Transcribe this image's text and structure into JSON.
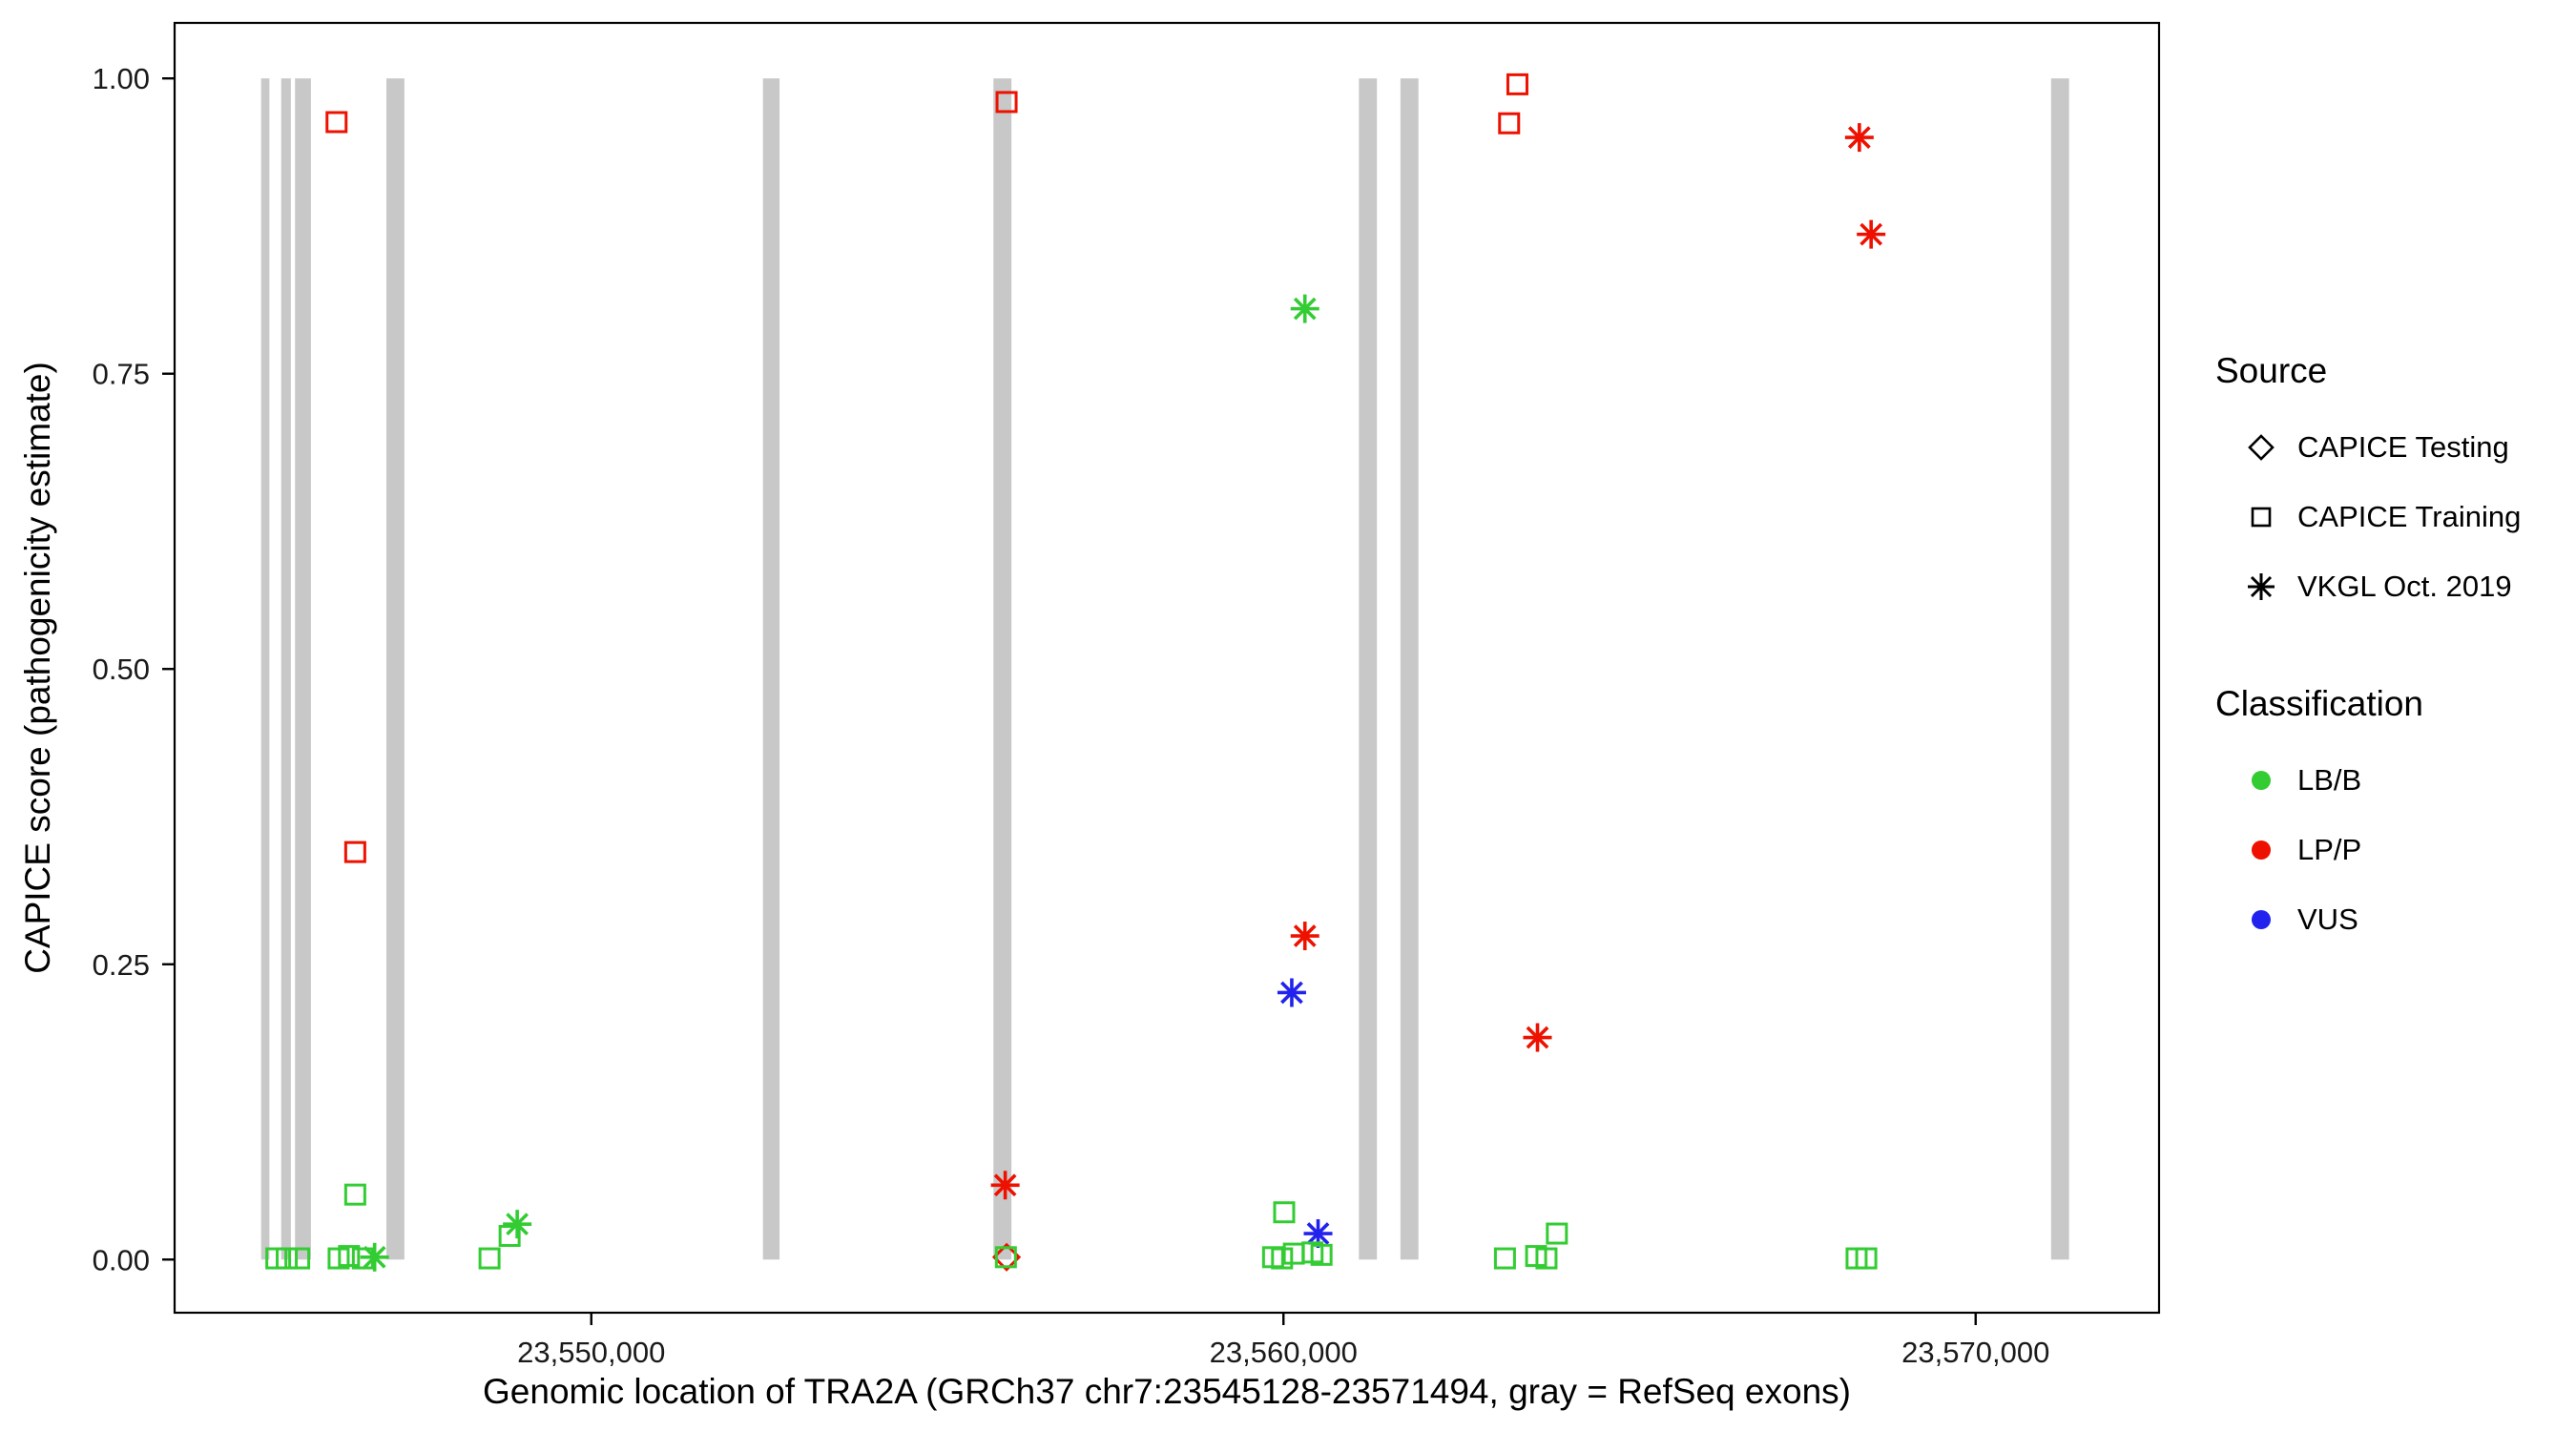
{
  "chart_data": {
    "type": "scatter",
    "title": "",
    "xlabel": "Genomic location of TRA2A (GRCh37 chr7:23545128-23571494, gray = RefSeq exons)",
    "ylabel": "CAPICE score (pathogenicity estimate)",
    "x_range": [
      23543980,
      23572650
    ],
    "y_range": [
      -0.045,
      1.047
    ],
    "x_ticks": [
      {
        "value": 23550000,
        "label": "23,550,000"
      },
      {
        "value": 23560000,
        "label": "23,560,000"
      },
      {
        "value": 23570000,
        "label": "23,570,000"
      }
    ],
    "y_ticks": [
      {
        "value": 0.0,
        "label": "0.00"
      },
      {
        "value": 0.25,
        "label": "0.25"
      },
      {
        "value": 0.5,
        "label": "0.50"
      },
      {
        "value": 0.75,
        "label": "0.75"
      },
      {
        "value": 1.0,
        "label": "1.00"
      }
    ],
    "grid": false,
    "legend_position": "right",
    "exon_y_extent": [
      0.0,
      1.0
    ],
    "exons": [
      {
        "start": 23545230,
        "end": 23545350
      },
      {
        "start": 23545520,
        "end": 23545660
      },
      {
        "start": 23545720,
        "end": 23545950
      },
      {
        "start": 23547040,
        "end": 23547300
      },
      {
        "start": 23552480,
        "end": 23552720
      },
      {
        "start": 23555810,
        "end": 23556070
      },
      {
        "start": 23561090,
        "end": 23561350
      },
      {
        "start": 23561690,
        "end": 23561950
      },
      {
        "start": 23571090,
        "end": 23571350
      }
    ],
    "points": [
      {
        "x": 23546320,
        "y": 0.963,
        "source": "CAPICE Training",
        "classification": "LP/P"
      },
      {
        "x": 23546590,
        "y": 0.345,
        "source": "CAPICE Training",
        "classification": "LP/P"
      },
      {
        "x": 23556000,
        "y": 0.98,
        "source": "CAPICE Training",
        "classification": "LP/P"
      },
      {
        "x": 23563380,
        "y": 0.995,
        "source": "CAPICE Training",
        "classification": "LP/P"
      },
      {
        "x": 23563260,
        "y": 0.962,
        "source": "CAPICE Training",
        "classification": "LP/P"
      },
      {
        "x": 23568320,
        "y": 0.95,
        "source": "VKGL Oct. 2019",
        "classification": "LP/P"
      },
      {
        "x": 23568490,
        "y": 0.868,
        "source": "VKGL Oct. 2019",
        "classification": "LP/P"
      },
      {
        "x": 23560310,
        "y": 0.274,
        "source": "VKGL Oct. 2019",
        "classification": "LP/P"
      },
      {
        "x": 23563670,
        "y": 0.188,
        "source": "VKGL Oct. 2019",
        "classification": "LP/P"
      },
      {
        "x": 23555980,
        "y": 0.063,
        "source": "VKGL Oct. 2019",
        "classification": "LP/P"
      },
      {
        "x": 23560310,
        "y": 0.805,
        "source": "VKGL Oct. 2019",
        "classification": "LB/B"
      },
      {
        "x": 23548930,
        "y": 0.03,
        "source": "VKGL Oct. 2019",
        "classification": "LB/B"
      },
      {
        "x": 23546870,
        "y": 0.002,
        "source": "VKGL Oct. 2019",
        "classification": "LB/B"
      },
      {
        "x": 23560120,
        "y": 0.226,
        "source": "VKGL Oct. 2019",
        "classification": "VUS"
      },
      {
        "x": 23560500,
        "y": 0.022,
        "source": "VKGL Oct. 2019",
        "classification": "VUS"
      },
      {
        "x": 23556000,
        "y": 0.002,
        "source": "CAPICE Testing",
        "classification": "LP/P"
      },
      {
        "x": 23546590,
        "y": 0.055,
        "source": "CAPICE Training",
        "classification": "LB/B"
      },
      {
        "x": 23545450,
        "y": 0.001,
        "source": "CAPICE Training",
        "classification": "LB/B"
      },
      {
        "x": 23545600,
        "y": 0.001,
        "source": "CAPICE Training",
        "classification": "LB/B"
      },
      {
        "x": 23545780,
        "y": 0.001,
        "source": "CAPICE Training",
        "classification": "LB/B"
      },
      {
        "x": 23546350,
        "y": 0.001,
        "source": "CAPICE Training",
        "classification": "LB/B"
      },
      {
        "x": 23546500,
        "y": 0.003,
        "source": "CAPICE Training",
        "classification": "LB/B"
      },
      {
        "x": 23546700,
        "y": 0.001,
        "source": "CAPICE Training",
        "classification": "LB/B"
      },
      {
        "x": 23548530,
        "y": 0.001,
        "source": "CAPICE Training",
        "classification": "LB/B"
      },
      {
        "x": 23548820,
        "y": 0.02,
        "source": "CAPICE Training",
        "classification": "LB/B"
      },
      {
        "x": 23555990,
        "y": 0.002,
        "source": "CAPICE Training",
        "classification": "LB/B"
      },
      {
        "x": 23559850,
        "y": 0.002,
        "source": "CAPICE Training",
        "classification": "LB/B"
      },
      {
        "x": 23559980,
        "y": 0.001,
        "source": "CAPICE Training",
        "classification": "LB/B"
      },
      {
        "x": 23560010,
        "y": 0.04,
        "source": "CAPICE Training",
        "classification": "LB/B"
      },
      {
        "x": 23560150,
        "y": 0.005,
        "source": "CAPICE Training",
        "classification": "LB/B"
      },
      {
        "x": 23560420,
        "y": 0.006,
        "source": "CAPICE Training",
        "classification": "LB/B"
      },
      {
        "x": 23560550,
        "y": 0.004,
        "source": "CAPICE Training",
        "classification": "LB/B"
      },
      {
        "x": 23563200,
        "y": 0.001,
        "source": "CAPICE Training",
        "classification": "LB/B"
      },
      {
        "x": 23563650,
        "y": 0.003,
        "source": "CAPICE Training",
        "classification": "LB/B"
      },
      {
        "x": 23563800,
        "y": 0.001,
        "source": "CAPICE Training",
        "classification": "LB/B"
      },
      {
        "x": 23563950,
        "y": 0.022,
        "source": "CAPICE Training",
        "classification": "LB/B"
      },
      {
        "x": 23568280,
        "y": 0.001,
        "source": "CAPICE Training",
        "classification": "LB/B"
      },
      {
        "x": 23568420,
        "y": 0.001,
        "source": "CAPICE Training",
        "classification": "LB/B"
      }
    ]
  },
  "legend": {
    "source": {
      "title": "Source",
      "items": [
        {
          "label": "CAPICE Testing",
          "shape": "diamond"
        },
        {
          "label": "CAPICE Training",
          "shape": "square"
        },
        {
          "label": "VKGL Oct. 2019",
          "shape": "asterisk"
        }
      ]
    },
    "classification": {
      "title": "Classification",
      "items": [
        {
          "label": "LB/B"
        },
        {
          "label": "LP/P"
        },
        {
          "label": "VUS"
        }
      ]
    }
  },
  "colors": {
    "LB/B": "#33cc33",
    "LP/P": "#ee1100",
    "VUS": "#2222ee",
    "exon": "#c8c8c8",
    "axis_text": "#1a1a1a",
    "panel_border": "#000000"
  }
}
